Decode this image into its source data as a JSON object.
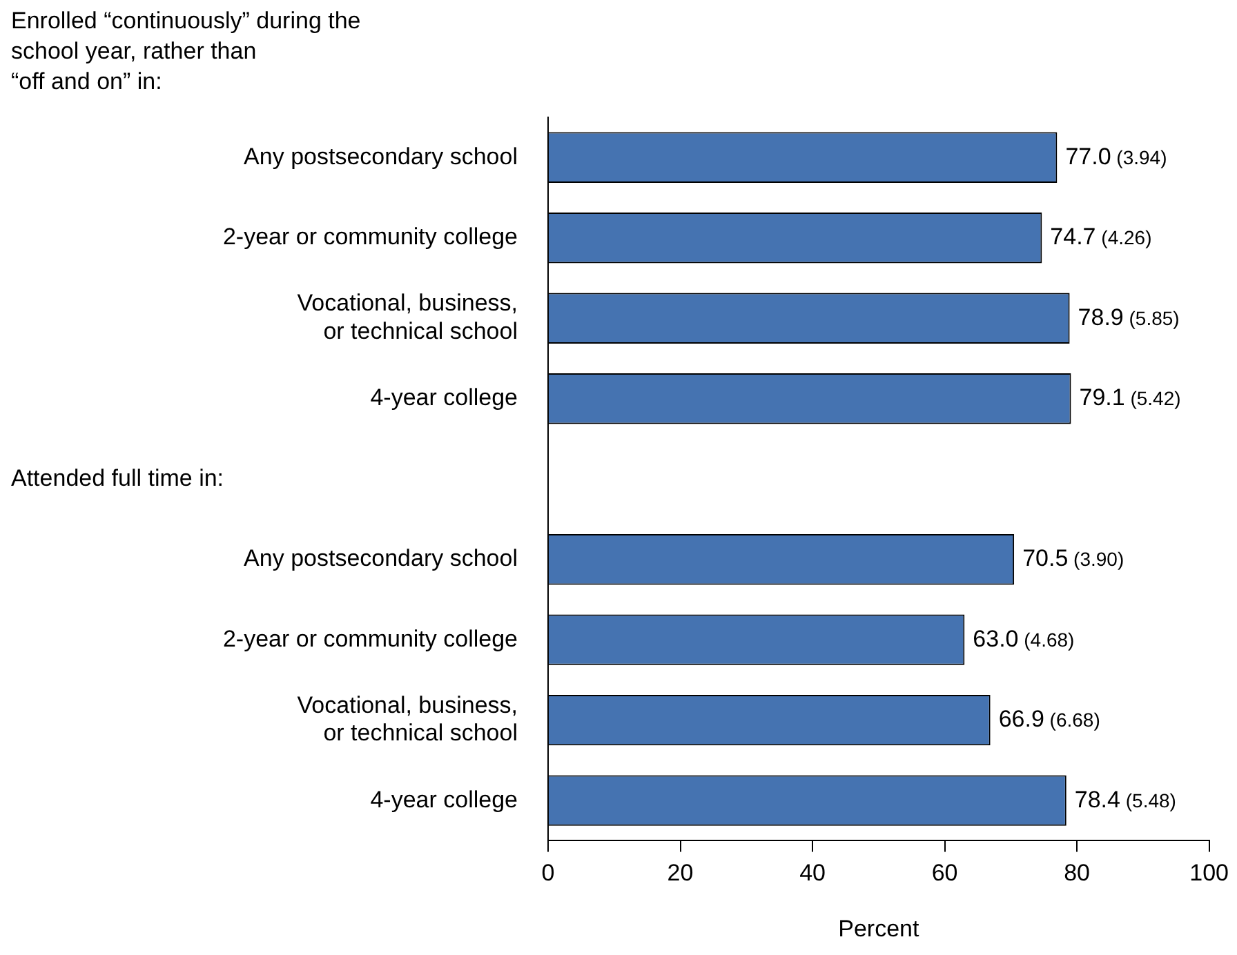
{
  "chart_data": {
    "type": "bar",
    "orientation": "horizontal",
    "xlabel": "Percent",
    "categories": [
      "Any postsecondary school",
      "2-year or community college",
      "Vocational, business,\nor technical school",
      "4-year college",
      null,
      "Any postsecondary school",
      "2-year or community college",
      "Vocational, business,\nor technical school",
      "4-year college"
    ],
    "values": [
      77.0,
      74.7,
      78.9,
      79.1,
      null,
      70.5,
      63.0,
      66.9,
      78.4
    ],
    "value_labels": [
      "77.0 (3.94)",
      "74.7 (4.26)",
      "78.9 (5.85)",
      "79.1 (5.42)",
      null,
      "70.5 (3.90)",
      "63.0 (4.68)",
      "66.9 (6.68)",
      "78.4 (5.48)"
    ],
    "color": "#4573b1",
    "xlim": [
      0,
      100
    ],
    "xticks": [
      0,
      20,
      40,
      60,
      80,
      100
    ],
    "grid": false,
    "legend": false,
    "annotations": [
      "Enrolled “continuously” during the\nschool year, rather than\n“off and on” in:",
      "Attended full time in:"
    ]
  }
}
